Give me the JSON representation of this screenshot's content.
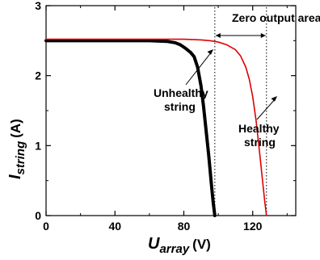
{
  "chart_data": {
    "type": "line",
    "xlabel": {
      "main": "U",
      "sub": "array",
      "unit": "(V)"
    },
    "ylabel": {
      "main": "I",
      "sub": "string",
      "unit": "(A)"
    },
    "xlim": [
      0,
      145
    ],
    "ylim": [
      0,
      3
    ],
    "xticks": [
      0,
      40,
      80,
      120
    ],
    "xtick_labels": [
      "0",
      "40",
      "80",
      "120"
    ],
    "yticks": [
      0,
      1,
      2,
      3
    ],
    "ytick_labels": [
      "0",
      "1",
      "2",
      "3"
    ],
    "grid": false,
    "series": [
      {
        "color": "#000000",
        "x": [
          0,
          20,
          40,
          60,
          70,
          75,
          78,
          81,
          84,
          86,
          88,
          90,
          91.5,
          93,
          94.5,
          96,
          97,
          98
        ],
        "y": [
          2.5,
          2.5,
          2.5,
          2.5,
          2.49,
          2.47,
          2.44,
          2.39,
          2.33,
          2.27,
          2.12,
          1.85,
          1.55,
          1.2,
          0.85,
          0.45,
          0.2,
          0.0
        ]
      },
      {
        "color": "#e00000",
        "x": [
          0,
          20,
          40,
          60,
          80,
          90,
          95,
          100,
          105,
          110,
          113,
          116,
          118,
          120,
          122,
          124,
          125.5,
          127,
          128
        ],
        "y": [
          2.52,
          2.52,
          2.52,
          2.52,
          2.52,
          2.51,
          2.5,
          2.48,
          2.44,
          2.37,
          2.28,
          2.12,
          1.95,
          1.7,
          1.35,
          0.9,
          0.55,
          0.2,
          0.0
        ]
      }
    ],
    "annotations": [
      {
        "text": "Zero output area"
      },
      {
        "text": "Unhealthy",
        "text2": "string"
      },
      {
        "text": "Healthy",
        "text2": "string"
      }
    ],
    "zero_output_range": [
      98,
      128
    ]
  }
}
